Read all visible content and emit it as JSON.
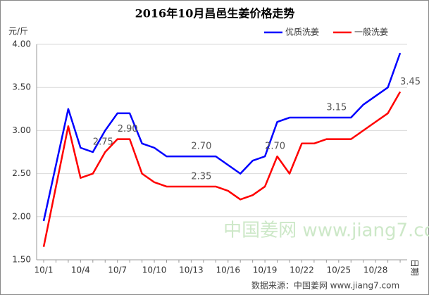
{
  "chart_data": {
    "type": "line",
    "title": "2016年10月昌邑生姜价格走势",
    "y_label": "元/斤",
    "x_label": "日期",
    "watermark": "中国姜网 www.jiang7.com",
    "source": "数据来源：中国姜网 www.jiang7.com",
    "categories": [
      "10/1",
      null,
      null,
      "10/4",
      null,
      null,
      "10/7",
      null,
      null,
      "10/10",
      null,
      null,
      "10/13",
      null,
      null,
      "10/16",
      null,
      null,
      "10/19",
      null,
      null,
      "10/22",
      null,
      null,
      "10/25",
      null,
      null,
      "10/28",
      null,
      null
    ],
    "series": [
      {
        "name": "优质洗姜",
        "color": "#0000ff",
        "values": [
          1.95,
          2.6,
          3.25,
          2.8,
          2.75,
          3.0,
          3.2,
          3.2,
          2.85,
          2.8,
          2.7,
          2.7,
          2.7,
          2.7,
          2.7,
          2.6,
          2.5,
          2.65,
          2.7,
          3.1,
          3.15,
          3.15,
          3.15,
          3.15,
          3.15,
          3.15,
          3.3,
          3.4,
          3.5,
          3.9
        ],
        "value_labels": [
          null,
          null,
          null,
          null,
          "2.75",
          null,
          null,
          null,
          null,
          null,
          null,
          null,
          "2.70",
          null,
          null,
          null,
          null,
          null,
          "2.70",
          null,
          null,
          null,
          null,
          "3.15",
          null,
          null,
          null,
          null,
          null,
          null
        ]
      },
      {
        "name": "一般洗姜",
        "color": "#ff0000",
        "values": [
          1.65,
          2.35,
          3.05,
          2.45,
          2.5,
          2.75,
          2.9,
          2.9,
          2.5,
          2.4,
          2.35,
          2.35,
          2.35,
          2.35,
          2.35,
          2.3,
          2.2,
          2.25,
          2.35,
          2.7,
          2.5,
          2.85,
          2.85,
          2.9,
          2.9,
          2.9,
          3.0,
          3.1,
          3.2,
          3.45
        ],
        "value_labels": [
          null,
          null,
          null,
          null,
          null,
          null,
          "2.90",
          null,
          null,
          null,
          null,
          null,
          "2.35",
          null,
          null,
          null,
          null,
          null,
          null,
          null,
          null,
          null,
          null,
          null,
          null,
          null,
          null,
          null,
          null,
          "3.45"
        ]
      }
    ],
    "ylim": [
      1.5,
      4.0
    ],
    "yticks": [
      {
        "value": 1.5,
        "label": "1.50"
      },
      {
        "value": 2.0,
        "label": "2.00"
      },
      {
        "value": 2.5,
        "label": "2.50"
      },
      {
        "value": 3.0,
        "label": "3.00"
      },
      {
        "value": 3.5,
        "label": "3.50"
      },
      {
        "value": 4.0,
        "label": "4.00"
      }
    ],
    "grid": true,
    "legend": "top-right"
  }
}
